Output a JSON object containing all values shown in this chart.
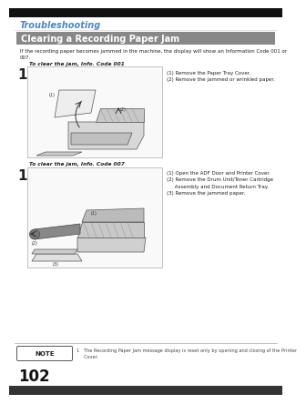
{
  "bg_color": "#ffffff",
  "title_section": "Troubleshooting",
  "title_section_color": "#4a86c8",
  "header_text": "Clearing a Recording Paper Jam",
  "header_bg": "#888888",
  "header_text_color": "#ffffff",
  "body_text1": "If the recording paper becomes jammed in the machine, the display will show an Information Code 001 or\n007.",
  "sub_title1": "To clear the jam, Info. Code 001",
  "step1_num": "1",
  "step1_instructions": "(1) Remove the Paper Tray Cover.\n(2) Remove the jammed or wrinkled paper.",
  "sub_title2": "To clear the jam, Info. Code 007",
  "step2_num": "1",
  "step2_instructions": "(1) Open the ADF Door and Printer Cover.\n(2) Remove the Drum Unit/Toner Cartridge\n     Assembly and Document Return Tray.\n(3) Remove the jammed paper.",
  "note_label": "NOTE",
  "note_text": "1   The Recording Paper Jam message display is reset only by opening and closing of the Printer\n     Cover.",
  "page_number": "102",
  "text_color": "#222222",
  "small_text_color": "#444444",
  "border_color": "#aaaaaa",
  "top_bar_color": "#111111",
  "bottom_bar_color": "#333333"
}
